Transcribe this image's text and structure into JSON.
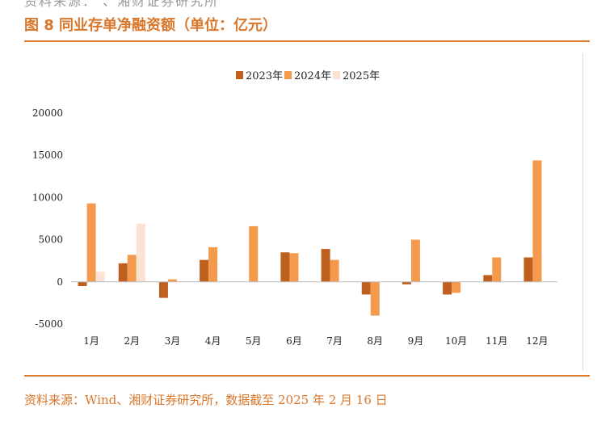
{
  "title": "图 8  同业存单净融资额（单位：亿元）",
  "top_cut_text": "资料来源：    、湘财证券研究所",
  "source": "资料来源：Wind、湘财证券研究所，数据截至 2025 年 2 月 16 日",
  "colors": {
    "accent": "#e07b2c",
    "s2023": "#c0601f",
    "s2024": "#f39a4d",
    "s2025": "#fbe2d2"
  },
  "chart_data": {
    "type": "bar",
    "categories": [
      "1月",
      "2月",
      "3月",
      "4月",
      "5月",
      "6月",
      "7月",
      "8月",
      "9月",
      "10月",
      "11月",
      "12月"
    ],
    "series": [
      {
        "name": "2023年",
        "values": [
          -500,
          2200,
          -1900,
          2600,
          null,
          3500,
          3900,
          -1500,
          -300,
          -1500,
          800,
          2900
        ]
      },
      {
        "name": "2024年",
        "values": [
          9300,
          3200,
          300,
          4100,
          6600,
          3400,
          2600,
          -4000,
          5000,
          -1300,
          2900,
          14400
        ]
      },
      {
        "name": "2025年",
        "values": [
          1200,
          6900,
          null,
          null,
          null,
          null,
          null,
          null,
          null,
          null,
          null,
          null
        ]
      }
    ],
    "ylim": [
      -5000,
      20000
    ],
    "yticks": [
      -5000,
      0,
      5000,
      10000,
      15000,
      20000
    ],
    "legend_position": "top",
    "grid": false
  }
}
